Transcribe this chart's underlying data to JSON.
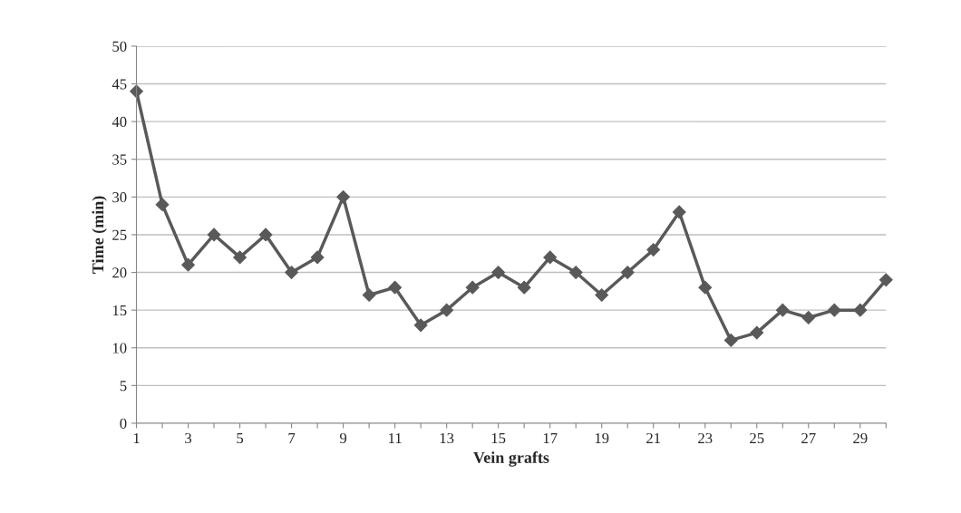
{
  "chart_data": {
    "type": "line",
    "xlabel": "Vein grafts",
    "ylabel": "Time (min)",
    "categories": [
      "1",
      null,
      "3",
      null,
      "5",
      null,
      "7",
      null,
      "9",
      null,
      "11",
      null,
      "13",
      null,
      "15",
      null,
      "17",
      null,
      "19",
      null,
      "21",
      null,
      "23",
      null,
      "25",
      null,
      "27",
      null,
      "29",
      null
    ],
    "series": [
      {
        "color": "#595959",
        "values": [
          44,
          29,
          21,
          25,
          22,
          25,
          20,
          22,
          30,
          17,
          18,
          13,
          15,
          18,
          20,
          18,
          22,
          20,
          17,
          20,
          23,
          28,
          18,
          11,
          12,
          15,
          14,
          15,
          15,
          19
        ]
      }
    ],
    "ylim": [
      0,
      50
    ],
    "yticks": [
      0,
      5,
      10,
      15,
      20,
      25,
      30,
      35,
      40,
      45,
      50
    ],
    "grid": "y",
    "marker": "diamond",
    "line_style": "solid"
  }
}
